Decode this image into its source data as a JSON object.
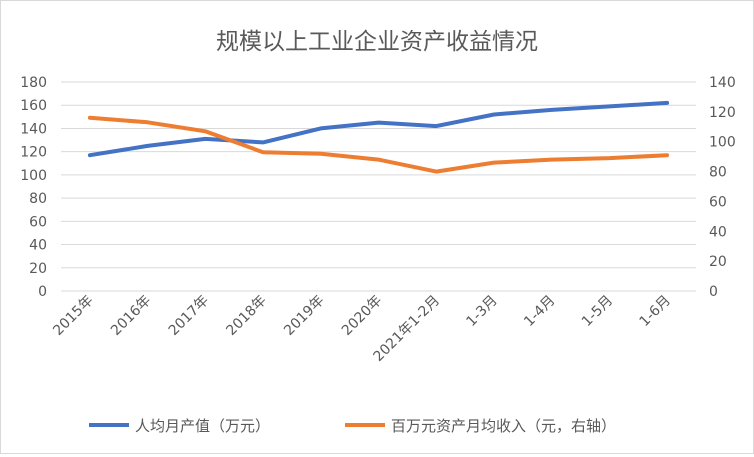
{
  "chart_data": {
    "type": "line",
    "title": "规模以上工业企业资产收益情况",
    "categories": [
      "2015年",
      "2016年",
      "2017年",
      "2018年",
      "2019年",
      "2020年",
      "2021年1-2月",
      "1-3月",
      "1-4月",
      "1-5月",
      "1-6月"
    ],
    "y_left": {
      "ylim": [
        0,
        180
      ],
      "ticks": [
        "0",
        "20",
        "40",
        "60",
        "80",
        "100",
        "120",
        "140",
        "160",
        "180"
      ]
    },
    "y_right": {
      "ylim": [
        0,
        140
      ],
      "ticks": [
        "0",
        "20",
        "40",
        "60",
        "80",
        "100",
        "120",
        "140"
      ]
    },
    "series": [
      {
        "name": "人均月产值（万元）",
        "axis": "left",
        "color": "#4472C4",
        "values": [
          117,
          125,
          131,
          128,
          140,
          145,
          142,
          152,
          156,
          159,
          162
        ]
      },
      {
        "name": "百万元资产月均收入（元，右轴）",
        "axis": "right",
        "color": "#ED7D31",
        "values": [
          116,
          113,
          107,
          93,
          92,
          88,
          80,
          86,
          88,
          89,
          91
        ]
      }
    ],
    "grid": true,
    "legend": "bottom"
  }
}
